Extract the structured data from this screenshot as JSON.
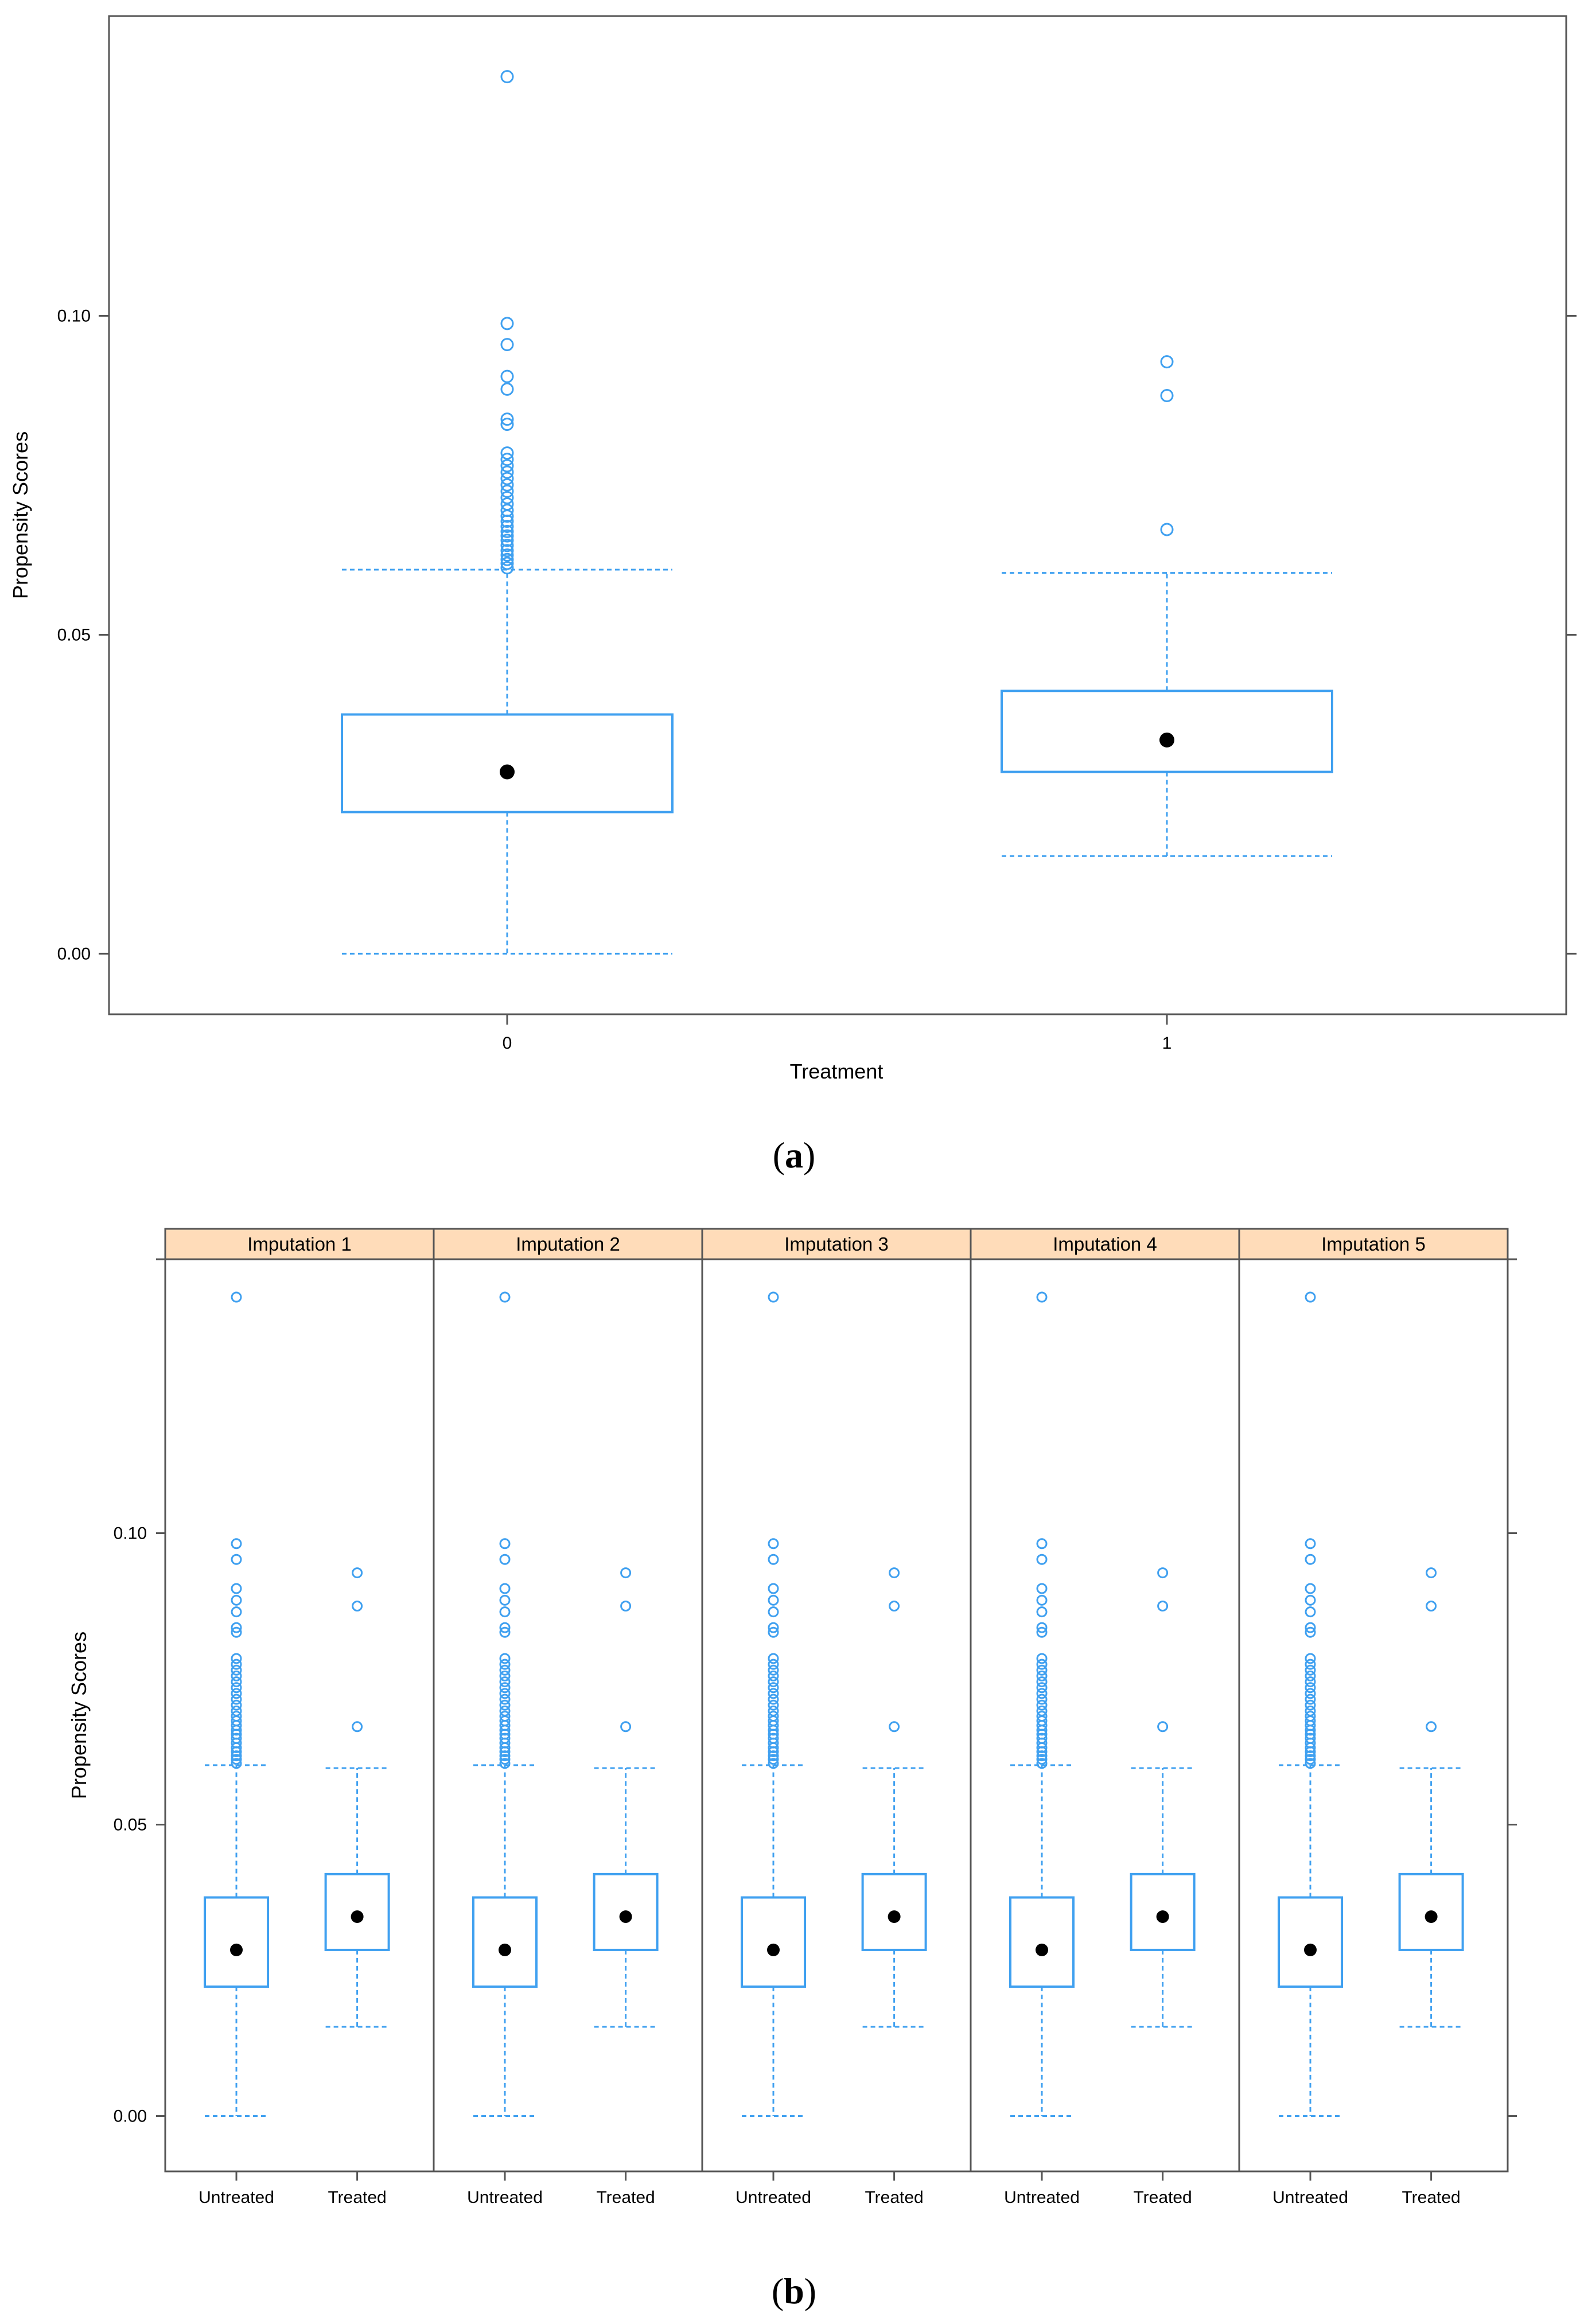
{
  "chart_data": [
    {
      "type": "box",
      "panel_caption": "(a)",
      "caption_open": "(",
      "caption_letter": "a",
      "caption_close": ")",
      "xlabel": "Treatment",
      "ylabel": "Propensity Scores",
      "ylim": [
        -0.0095,
        0.147
      ],
      "yticks": [
        0.0,
        0.05,
        0.1
      ],
      "ytick_labels": [
        "0.00",
        "0.05",
        "0.10"
      ],
      "categories": [
        "0",
        "1"
      ],
      "boxes": [
        {
          "category": "0",
          "whisker_low": 0.0,
          "q1": 0.0222,
          "median": 0.0285,
          "q3": 0.0375,
          "whisker_high": 0.0602,
          "outliers": [
            0.0605,
            0.0612,
            0.0618,
            0.0625,
            0.0632,
            0.064,
            0.0648,
            0.0655,
            0.0662,
            0.067,
            0.0678,
            0.0686,
            0.0695,
            0.0705,
            0.0715,
            0.0725,
            0.0735,
            0.0745,
            0.0755,
            0.0765,
            0.0775,
            0.0785,
            0.083,
            0.0838,
            0.0885,
            0.0905,
            0.0955,
            0.0988,
            0.1375
          ]
        },
        {
          "category": "1",
          "whisker_low": 0.0153,
          "q1": 0.0285,
          "median": 0.0335,
          "q3": 0.0412,
          "whisker_high": 0.0597,
          "outliers": [
            0.0665,
            0.0875,
            0.0928
          ]
        }
      ]
    },
    {
      "type": "box",
      "panel_caption": "(b)",
      "caption_open": "(",
      "caption_letter": "b",
      "caption_close": ")",
      "ylabel": "Propensity Scores",
      "ylim": [
        -0.0095,
        0.147
      ],
      "yticks": [
        0.0,
        0.05,
        0.1
      ],
      "ytick_labels": [
        "0.00",
        "0.05",
        "0.10"
      ],
      "panels": [
        {
          "strip": "Imputation 1",
          "categories": [
            "Untreated",
            "Treated"
          ]
        },
        {
          "strip": "Imputation 2",
          "categories": [
            "Untreated",
            "Treated"
          ]
        },
        {
          "strip": "Imputation 3",
          "categories": [
            "Untreated",
            "Treated"
          ]
        },
        {
          "strip": "Imputation 4",
          "categories": [
            "Untreated",
            "Treated"
          ]
        },
        {
          "strip": "Imputation 5",
          "categories": [
            "Untreated",
            "Treated"
          ]
        }
      ],
      "boxes": [
        {
          "category": "Untreated",
          "whisker_low": 0.0,
          "q1": 0.0222,
          "median": 0.0285,
          "q3": 0.0375,
          "whisker_high": 0.0602,
          "outliers": [
            0.0605,
            0.0612,
            0.0618,
            0.0625,
            0.0632,
            0.064,
            0.0648,
            0.0655,
            0.0662,
            0.067,
            0.0678,
            0.0686,
            0.0695,
            0.0705,
            0.0715,
            0.0725,
            0.0735,
            0.0745,
            0.0755,
            0.0765,
            0.0775,
            0.0785,
            0.083,
            0.0838,
            0.0865,
            0.0885,
            0.0905,
            0.0955,
            0.0982,
            0.1405
          ]
        },
        {
          "category": "Treated",
          "whisker_low": 0.0153,
          "q1": 0.0285,
          "median": 0.0342,
          "q3": 0.0415,
          "whisker_high": 0.0597,
          "outliers": [
            0.0668,
            0.0875,
            0.0932
          ]
        }
      ]
    }
  ],
  "colors": {
    "box": "#3fa0f0",
    "median": "#000000",
    "frame": "#555555",
    "strip": "#ffdcb9"
  }
}
